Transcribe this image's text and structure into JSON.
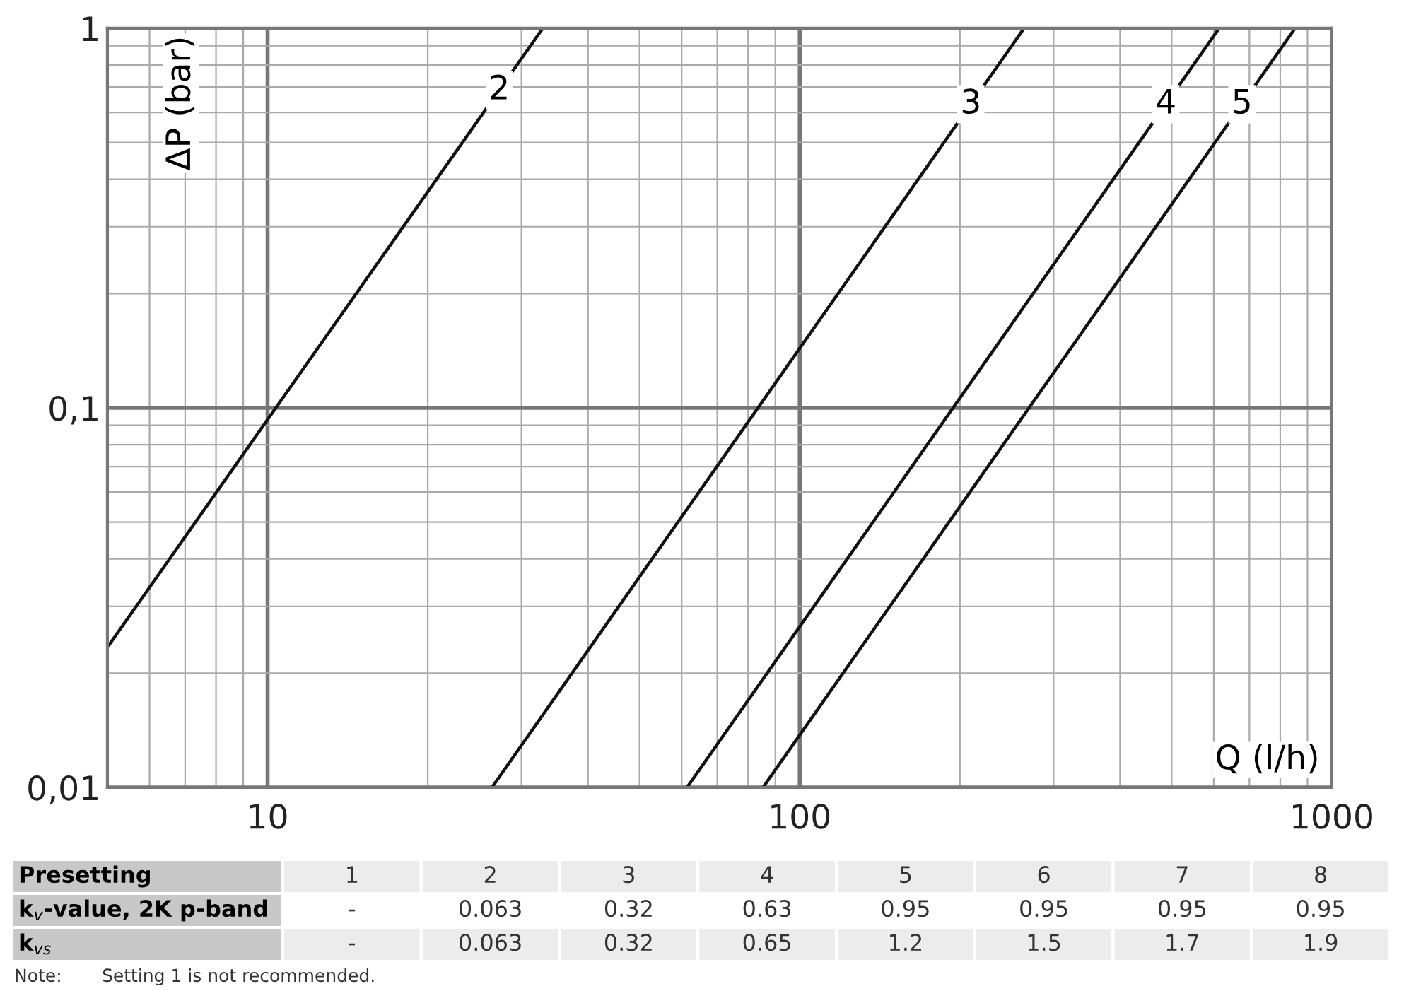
{
  "chart_data": {
    "type": "line",
    "log": "xy",
    "xlabel": "Q (l/h)",
    "ylabel": "ΔP (bar)",
    "xlim": [
      5,
      1000
    ],
    "ylim": [
      0.01,
      1
    ],
    "xticks": [
      10,
      100,
      1000
    ],
    "yticks": [
      {
        "value": 0.01,
        "label": "0,01"
      },
      {
        "value": 0.1,
        "label": "0,1"
      },
      1
    ],
    "grid": true,
    "color": "#111111",
    "series": [
      {
        "name": "2",
        "x": [
          5,
          32.9
        ],
        "values": [
          0.0234,
          1
        ]
      },
      {
        "name": "3",
        "x": [
          26.4,
          264
        ],
        "values": [
          0.01,
          1
        ]
      },
      {
        "name": "4",
        "x": [
          61.4,
          614
        ],
        "values": [
          0.01,
          1
        ]
      },
      {
        "name": "5",
        "x": [
          85.3,
          853
        ],
        "values": [
          0.01,
          1
        ]
      }
    ],
    "annotations": [
      "Presetting",
      "1",
      "2",
      "3",
      "4",
      "5",
      "6",
      "7",
      "8",
      "k$_{v}$-value, 2K p-band",
      "-",
      "0.063",
      "0.32",
      "0.63",
      "0.95",
      "0.95",
      "0.95",
      "0.95",
      "k$_{vs}$",
      "-",
      "0.063",
      "0.32",
      "0.65",
      "1.2",
      "1.5",
      "1.7",
      "1.9",
      "Note:",
      "Setting 1 is not recommended."
    ]
  }
}
